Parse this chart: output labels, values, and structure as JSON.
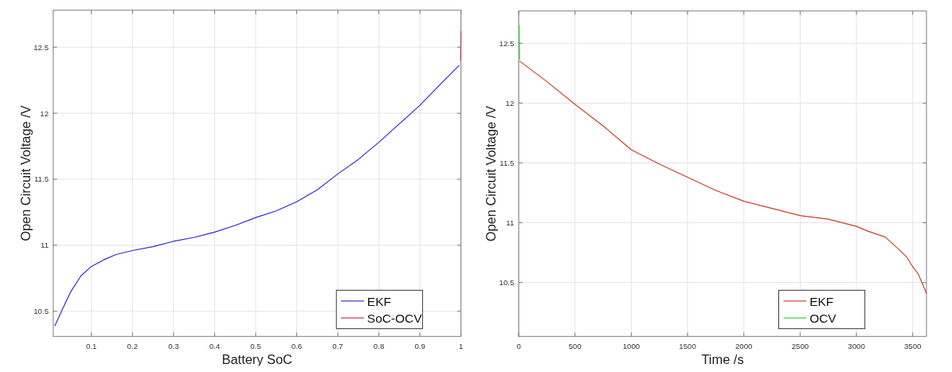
{
  "chart_data": [
    {
      "type": "line",
      "xlabel": "Battery SoC",
      "ylabel": "Open Circuit Voltage /V",
      "xlim": [
        0.007,
        1
      ],
      "xticks": [
        0.1,
        0.2,
        0.3,
        0.4,
        0.5,
        0.6,
        0.7,
        0.8,
        0.9,
        1
      ],
      "ylim": [
        10.31,
        12.78
      ],
      "yticks": [
        10.5,
        11,
        11.5,
        12,
        12.5
      ],
      "grid": true,
      "legend": "bottom right",
      "line_style": "solid",
      "marker": "none",
      "series": [
        {
          "name": "EKF",
          "color": "#2a2ad8",
          "x": [
            0.011,
            0.03,
            0.05,
            0.075,
            0.1,
            0.13,
            0.16,
            0.2,
            0.25,
            0.3,
            0.35,
            0.4,
            0.45,
            0.5,
            0.55,
            0.6,
            0.65,
            0.7,
            0.75,
            0.8,
            0.85,
            0.9,
            0.95,
            0.995
          ],
          "values": [
            10.39,
            10.52,
            10.65,
            10.77,
            10.84,
            10.89,
            10.93,
            10.96,
            10.99,
            11.03,
            11.06,
            11.1,
            11.15,
            11.21,
            11.26,
            11.33,
            11.42,
            11.54,
            11.65,
            11.78,
            11.92,
            12.06,
            12.22,
            12.36
          ]
        },
        {
          "name": "SoC-OCV",
          "color": "#c0304a",
          "x": [
            0.999,
            1
          ],
          "values": [
            12.4,
            12.62
          ]
        }
      ]
    },
    {
      "type": "line",
      "xlabel": "Time /s",
      "ylabel": "Open Circuit Voltage /V",
      "xlim": [
        0,
        3622
      ],
      "xticks": [
        0,
        500,
        1000,
        1500,
        2000,
        2500,
        3000,
        3500
      ],
      "ylim": [
        10.05,
        12.77
      ],
      "yticks": [
        10.5,
        11,
        11.5,
        12,
        12.5
      ],
      "grid": true,
      "legend": "bottom right",
      "line_style": "solid",
      "marker": "none",
      "series": [
        {
          "name": "EKF",
          "color": "#c8402a",
          "x": [
            10,
            250,
            500,
            750,
            1000,
            1250,
            1500,
            1750,
            2000,
            2250,
            2500,
            2750,
            3000,
            3100,
            3257,
            3373,
            3450,
            3501,
            3550,
            3622
          ],
          "values": [
            12.35,
            12.18,
            11.99,
            11.81,
            11.61,
            11.49,
            11.38,
            11.27,
            11.18,
            11.12,
            11.06,
            11.03,
            10.97,
            10.93,
            10.88,
            10.78,
            10.71,
            10.63,
            10.57,
            10.41
          ]
        },
        {
          "name": "OCV",
          "color": "#3cc83c",
          "x": [
            4,
            8
          ],
          "values": [
            12.65,
            12.37
          ]
        }
      ]
    }
  ]
}
